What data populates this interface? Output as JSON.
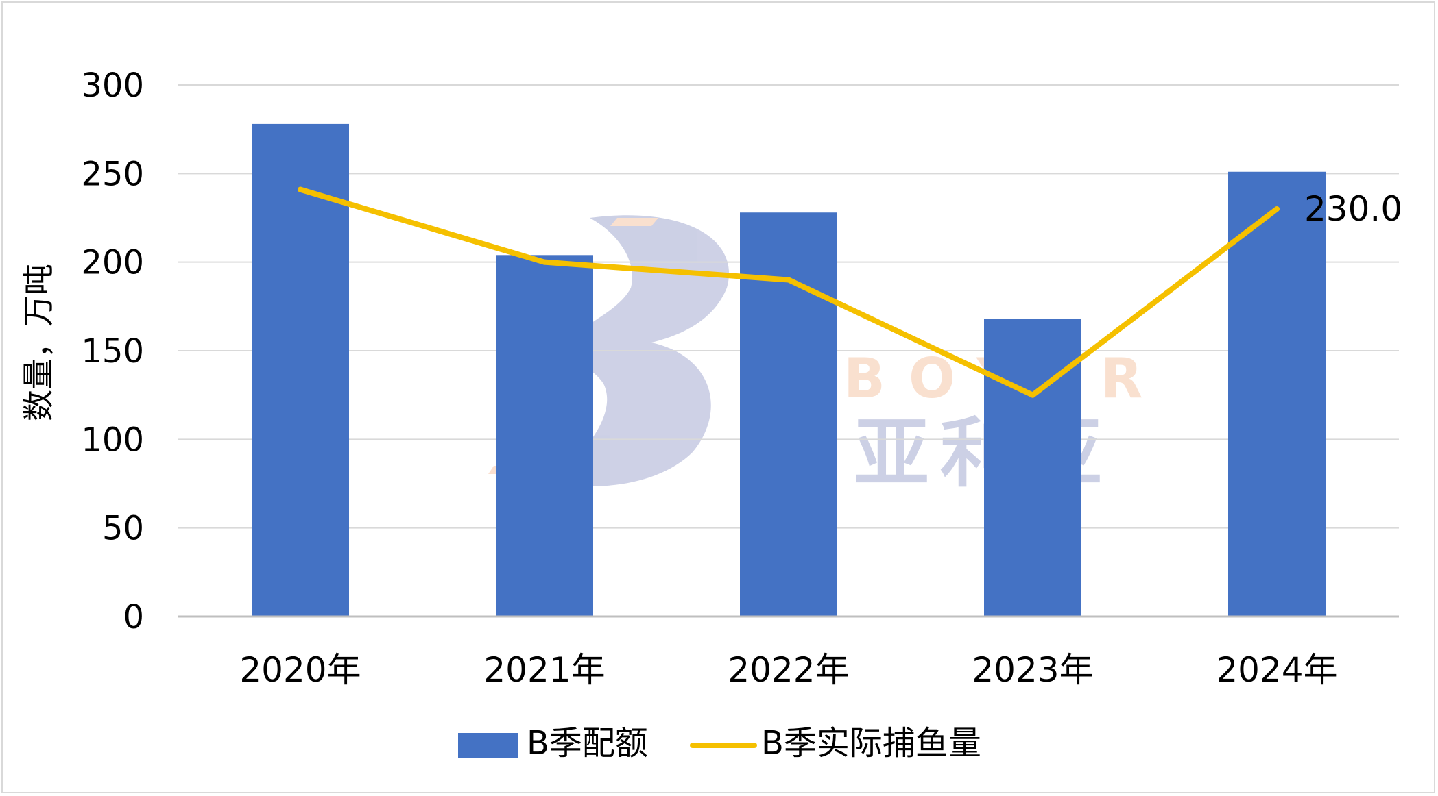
{
  "chart_data": {
    "type": "bar",
    "categories": [
      "2020年",
      "2021年",
      "2022年",
      "2023年",
      "2024年"
    ],
    "series": [
      {
        "name": "B季配额",
        "type": "bar",
        "color": "#4472c4",
        "values": [
          278,
          204,
          228,
          168,
          251
        ]
      },
      {
        "name": "B季实际捕鱼量",
        "type": "line",
        "color": "#f5c000",
        "values": [
          241,
          200,
          190,
          125,
          230
        ]
      }
    ],
    "ylabel": "数量，万吨",
    "ylim": [
      0,
      300
    ],
    "yticks": [
      0,
      50,
      100,
      150,
      200,
      250,
      300
    ],
    "grid": true,
    "legend_position": "bottom",
    "data_labels": [
      {
        "series": 1,
        "index": 4,
        "text": "230.0"
      }
    ]
  },
  "watermark": {
    "latin": "BOYER",
    "chinese": "亚利亚"
  }
}
